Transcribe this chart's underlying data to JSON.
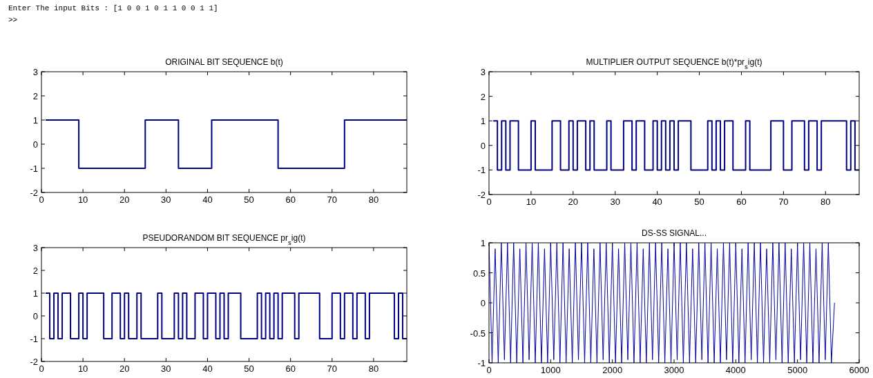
{
  "chart_data": [
    {
      "type": "other",
      "annotations": [
        "Enter The input Bits : [1 0 0 1 0 1 1 0 0 1 1]",
        ">>"
      ]
    },
    {
      "type": "step",
      "title": "ORIGINAL BIT SEQUENCE b(t)",
      "color": "#000080",
      "xlim": [
        0,
        88
      ],
      "ylim": [
        -2,
        3
      ],
      "xticks": [
        0,
        10,
        20,
        30,
        40,
        50,
        60,
        70,
        80
      ],
      "yticks": [
        -2,
        -1,
        0,
        1,
        2,
        3
      ],
      "x": [
        1,
        9,
        25,
        33,
        41,
        57,
        73,
        88
      ],
      "values": [
        1,
        -1,
        1,
        -1,
        1,
        -1,
        1,
        1
      ]
    },
    {
      "type": "step",
      "title": "MULTIPLIER OUTPUT SEQUENCE b(t)*pr$_{s}$ig(t)",
      "color": "#000080",
      "xlim": [
        0,
        88
      ],
      "ylim": [
        -2,
        3
      ],
      "xticks": [
        0,
        10,
        20,
        30,
        40,
        50,
        60,
        70,
        80
      ],
      "yticks": [
        -2,
        -1,
        0,
        1,
        2,
        3
      ],
      "x": [
        1,
        2,
        3,
        4,
        5,
        7,
        10,
        11,
        15,
        17,
        19,
        20,
        21,
        23,
        24,
        25,
        28,
        29,
        32,
        34,
        35,
        37,
        39,
        40,
        41,
        42,
        43,
        44,
        45,
        48,
        52,
        53,
        54,
        55,
        56,
        58,
        61,
        62,
        67,
        70,
        72,
        75,
        76,
        78,
        79,
        85,
        86,
        87,
        88
      ],
      "values": [
        1,
        -1,
        1,
        -1,
        1,
        -1,
        1,
        -1,
        1,
        -1,
        1,
        -1,
        1,
        -1,
        1,
        -1,
        1,
        -1,
        1,
        -1,
        1,
        -1,
        1,
        -1,
        1,
        -1,
        1,
        -1,
        1,
        -1,
        1,
        -1,
        1,
        -1,
        1,
        -1,
        1,
        -1,
        1,
        -1,
        1,
        -1,
        1,
        -1,
        1,
        -1,
        1,
        -1,
        -1
      ]
    },
    {
      "type": "step",
      "title": "PSEUDORANDOM BIT SEQUENCE pr$_{s}$ig(t)",
      "color": "#000080",
      "xlim": [
        0,
        88
      ],
      "ylim": [
        -2,
        3
      ],
      "xticks": [
        0,
        10,
        20,
        30,
        40,
        50,
        60,
        70,
        80
      ],
      "yticks": [
        -2,
        -1,
        0,
        1,
        2,
        3
      ],
      "x": [
        1,
        2,
        3,
        4,
        5,
        7,
        9,
        10,
        11,
        15,
        17,
        19,
        20,
        21,
        23,
        24,
        28,
        29,
        32,
        33,
        34,
        35,
        37,
        39,
        40,
        42,
        43,
        44,
        45,
        48,
        52,
        53,
        54,
        55,
        56,
        57,
        58,
        61,
        62,
        67,
        70,
        72,
        73,
        75,
        76,
        78,
        79,
        85,
        86,
        87,
        88
      ],
      "values": [
        1,
        -1,
        1,
        -1,
        1,
        -1,
        1,
        -1,
        1,
        -1,
        1,
        -1,
        1,
        -1,
        1,
        -1,
        1,
        -1,
        1,
        -1,
        1,
        -1,
        1,
        -1,
        1,
        -1,
        1,
        -1,
        1,
        -1,
        1,
        -1,
        1,
        -1,
        1,
        -1,
        1,
        -1,
        1,
        -1,
        1,
        -1,
        1,
        -1,
        1,
        -1,
        1,
        -1,
        1,
        -1,
        -1
      ]
    },
    {
      "type": "line",
      "title": "DS-SS SIGNAL...",
      "color": "#0000a0",
      "xlim": [
        0,
        6000
      ],
      "ylim": [
        -1,
        1
      ],
      "xticks": [
        0,
        1000,
        2000,
        3000,
        4000,
        5000,
        6000
      ],
      "yticks": [
        -1,
        -0.5,
        0,
        0.5,
        1
      ],
      "x": [
        0,
        50,
        100,
        150,
        200,
        250,
        300,
        350,
        400,
        450,
        500,
        550,
        600,
        650,
        700,
        750,
        800,
        850,
        900,
        950,
        1000,
        1050,
        1100,
        1150,
        1200,
        1250,
        1300,
        1350,
        1400,
        1450,
        1500,
        1550,
        1600,
        1650,
        1700,
        1750,
        1800,
        1850,
        1900,
        1950,
        2000,
        2050,
        2100,
        2150,
        2200,
        2250,
        2300,
        2350,
        2400,
        2450,
        2500,
        2550,
        2600,
        2650,
        2700,
        2750,
        2800,
        2850,
        2900,
        2950,
        3000,
        3050,
        3100,
        3150,
        3200,
        3250,
        3300,
        3350,
        3400,
        3450,
        3500,
        3550,
        3600,
        3650,
        3700,
        3750,
        3800,
        3850,
        3900,
        3950,
        4000,
        4050,
        4100,
        4150,
        4200,
        4250,
        4300,
        4350,
        4400,
        4450,
        4500,
        4550,
        4600,
        4650,
        4700,
        4750,
        4800,
        4850,
        4900,
        4950,
        5000,
        5050,
        5100,
        5150,
        5200,
        5250,
        5300,
        5350,
        5400,
        5450,
        5500,
        5550,
        5600
      ],
      "values": [
        1,
        -1,
        0.9,
        -1,
        1,
        -0.95,
        1,
        -1,
        1,
        -1,
        0.9,
        -1,
        1,
        -0.95,
        1,
        -1,
        1,
        -1,
        0.9,
        -1,
        1,
        -0.95,
        1,
        -1,
        1,
        -1,
        0.9,
        -1,
        1,
        -0.95,
        1,
        -1,
        1,
        -1,
        0.9,
        -1,
        1,
        -0.95,
        1,
        -1,
        1,
        -1,
        0.9,
        -1,
        1,
        -0.95,
        1,
        -1,
        1,
        -1,
        0.9,
        -1,
        1,
        -0.95,
        1,
        -1,
        1,
        -1,
        0.9,
        -1,
        1,
        -0.95,
        1,
        -1,
        1,
        -1,
        0.9,
        -1,
        1,
        -0.95,
        1,
        -1,
        1,
        -1,
        0.9,
        -1,
        1,
        -0.95,
        1,
        -1,
        1,
        -1,
        0.9,
        -1,
        1,
        -0.95,
        1,
        -1,
        1,
        -1,
        0.9,
        -1,
        1,
        -0.95,
        1,
        -1,
        1,
        -1,
        0.9,
        -1,
        1,
        -0.95,
        1,
        -1,
        1,
        -1,
        0.9,
        -1,
        1,
        -0.95,
        1,
        -1,
        0
      ]
    }
  ]
}
